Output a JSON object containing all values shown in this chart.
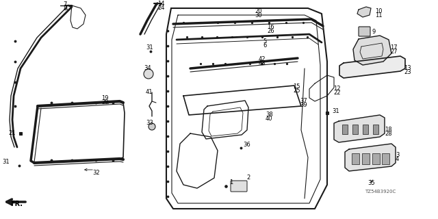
{
  "background_color": "#ffffff",
  "line_color": "#1a1a1a",
  "text_color": "#000000",
  "figsize": [
    6.4,
    3.2
  ],
  "dpi": 100,
  "diagram_label": "TZ54B3920C"
}
